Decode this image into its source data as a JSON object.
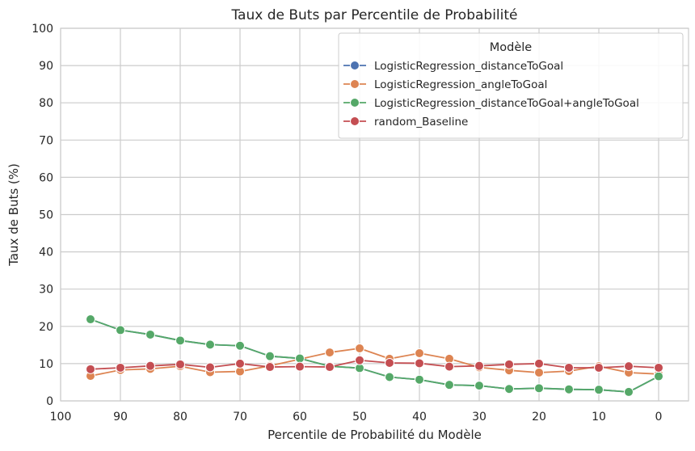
{
  "chart_data": {
    "type": "line",
    "title": "Taux de Buts par Percentile de Probabilité",
    "xlabel": "Percentile de Probabilité du Modèle",
    "ylabel": "Taux de Buts (%)",
    "xlim": [
      100,
      -5
    ],
    "ylim": [
      0,
      100
    ],
    "x_inverted": true,
    "xticks": [
      100,
      90,
      80,
      70,
      60,
      50,
      40,
      30,
      20,
      10,
      0
    ],
    "yticks": [
      0,
      10,
      20,
      30,
      40,
      50,
      60,
      70,
      80,
      90,
      100
    ],
    "grid": true,
    "legend": {
      "title": "Modèle",
      "placement": "top-right"
    },
    "x": [
      95,
      90,
      85,
      80,
      75,
      70,
      65,
      60,
      55,
      50,
      45,
      40,
      35,
      30,
      25,
      20,
      15,
      10,
      5,
      0
    ],
    "series": [
      {
        "name": "LogisticRegression_distanceToGoal",
        "color": "#4c72b0",
        "values": [
          21.9,
          19.0,
          17.8,
          16.2,
          15.1,
          14.8,
          12.0,
          11.4,
          9.3,
          8.8,
          6.4,
          5.7,
          4.3,
          4.1,
          3.2,
          3.4,
          3.1,
          3.0,
          2.4,
          6.6
        ]
      },
      {
        "name": "LogisticRegression_angleToGoal",
        "color": "#dd8452",
        "values": [
          6.7,
          8.3,
          8.6,
          9.3,
          7.7,
          7.9,
          9.4,
          11.2,
          13.0,
          14.1,
          11.3,
          12.8,
          11.3,
          9.0,
          8.2,
          7.6,
          8.0,
          9.3,
          7.6,
          7.2
        ]
      },
      {
        "name": "LogisticRegression_distanceToGoal+angleToGoal",
        "color": "#55a868",
        "values": [
          21.9,
          19.0,
          17.8,
          16.2,
          15.1,
          14.8,
          12.0,
          11.4,
          9.3,
          8.8,
          6.4,
          5.7,
          4.3,
          4.1,
          3.2,
          3.4,
          3.1,
          3.0,
          2.4,
          6.6
        ]
      },
      {
        "name": "random_Baseline",
        "color": "#c44e52",
        "values": [
          8.5,
          8.9,
          9.4,
          9.8,
          9.0,
          10.0,
          9.1,
          9.2,
          9.1,
          10.9,
          10.2,
          10.1,
          9.2,
          9.4,
          9.8,
          10.0,
          8.9,
          8.9,
          9.3,
          8.9
        ]
      }
    ]
  }
}
